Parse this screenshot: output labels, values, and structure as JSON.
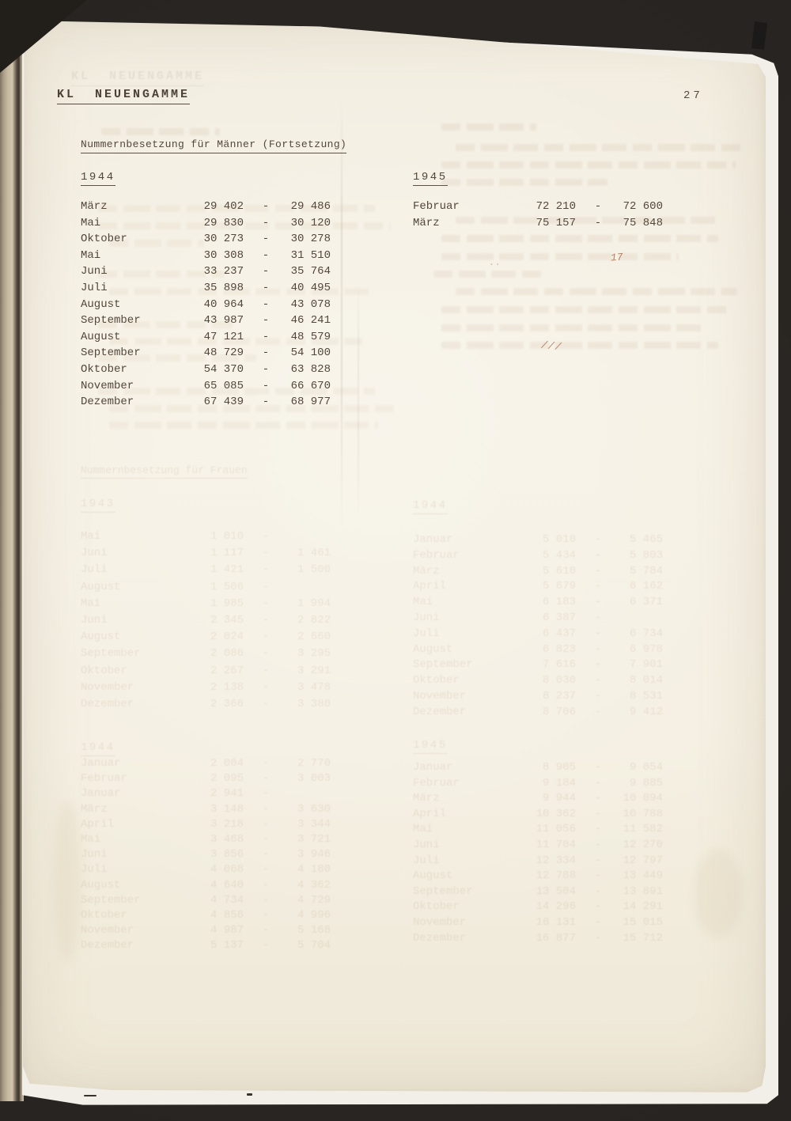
{
  "header": {
    "title": "KL  NEUENGAMME",
    "page_number": "27"
  },
  "section": {
    "title": "Nummernbesetzung für Männer (Fortsetzung)"
  },
  "tables": {
    "y1944": {
      "year_label": "1944",
      "rows": [
        {
          "m": "März",
          "a": "29 402",
          "d": "-",
          "b": "29 486"
        },
        {
          "m": "Mai",
          "a": "29 830",
          "d": "-",
          "b": "30 120"
        },
        {
          "m": "Oktober",
          "a": "30 273",
          "d": "-",
          "b": "30 278"
        },
        {
          "m": "Mai",
          "a": "30 308",
          "d": "-",
          "b": "31 510"
        },
        {
          "m": "Juni",
          "a": "33 237",
          "d": "-",
          "b": "35 764"
        },
        {
          "m": "Juli",
          "a": "35 898",
          "d": "-",
          "b": "40 495"
        },
        {
          "m": "August",
          "a": "40 964",
          "d": "-",
          "b": "43 078"
        },
        {
          "m": "September",
          "a": "43 987",
          "d": "-",
          "b": "46 241"
        },
        {
          "m": "August",
          "a": "47 121",
          "d": "-",
          "b": "48 579"
        },
        {
          "m": "September",
          "a": "48 729",
          "d": "-",
          "b": "54 100"
        },
        {
          "m": "Oktober",
          "a": "54 370",
          "d": "-",
          "b": "63 828"
        },
        {
          "m": "November",
          "a": "65 085",
          "d": "-",
          "b": "66 670"
        },
        {
          "m": "Dezember",
          "a": "67 439",
          "d": "-",
          "b": "68 977"
        }
      ]
    },
    "y1945": {
      "year_label": "1945",
      "rows": [
        {
          "m": "Februar",
          "a": "72 210",
          "d": "-",
          "b": "72 600"
        },
        {
          "m": "März",
          "a": "75 157",
          "d": "-",
          "b": "75 848"
        }
      ]
    }
  },
  "ghost_bleedthrough": {
    "note_title_illegible": "Nummernbesetzung für Frauen",
    "tableA": {
      "year_label": "1943",
      "rows": [
        {
          "m": "Mai",
          "a": "1 010",
          "d": "-",
          "b": ""
        },
        {
          "m": "Juni",
          "a": "1 117",
          "d": "-",
          "b": "1 461"
        },
        {
          "m": "Juli",
          "a": "1 421",
          "d": "-",
          "b": "1 500"
        },
        {
          "m": "August",
          "a": "1 506",
          "d": "-",
          "b": ""
        },
        {
          "m": "Mai",
          "a": "1 985",
          "d": "-",
          "b": "1 994"
        },
        {
          "m": "Juni",
          "a": "2 345",
          "d": "-",
          "b": "2 822"
        },
        {
          "m": "August",
          "a": "2 024",
          "d": "-",
          "b": "2 660"
        },
        {
          "m": "September",
          "a": "2 086",
          "d": "-",
          "b": "3 295"
        },
        {
          "m": "Oktober",
          "a": "2 267",
          "d": "-",
          "b": "3 291"
        },
        {
          "m": "November",
          "a": "2 138",
          "d": "-",
          "b": "3 478"
        },
        {
          "m": "Dezember",
          "a": "2 366",
          "d": "-",
          "b": "3 380"
        }
      ]
    },
    "tableB": {
      "year_label": "1944",
      "rows": [
        {
          "m": "Januar",
          "a": "5 010",
          "d": "-",
          "b": "5 465"
        },
        {
          "m": "Februar",
          "a": "5 434",
          "d": "-",
          "b": "5 803"
        },
        {
          "m": "März",
          "a": "5 610",
          "d": "-",
          "b": "5 784"
        },
        {
          "m": "April",
          "a": "5 679",
          "d": "-",
          "b": "6 162"
        },
        {
          "m": "Mai",
          "a": "6 183",
          "d": "-",
          "b": "6 371"
        },
        {
          "m": "Juni",
          "a": "6 387",
          "d": "-",
          "b": ""
        },
        {
          "m": "Juli",
          "a": "6 437",
          "d": "-",
          "b": "6 734"
        },
        {
          "m": "August",
          "a": "6 823",
          "d": "-",
          "b": "6 978"
        },
        {
          "m": "September",
          "a": "7 616",
          "d": "-",
          "b": "7 901"
        },
        {
          "m": "Oktober",
          "a": "8 030",
          "d": "-",
          "b": "8 014"
        },
        {
          "m": "November",
          "a": "8 237",
          "d": "-",
          "b": "8 531"
        },
        {
          "m": "Dezember",
          "a": "8 706",
          "d": "-",
          "b": "9 412"
        }
      ]
    },
    "tableC": {
      "year_label": "1944",
      "rows": [
        {
          "m": "Januar",
          "a": "2 004",
          "d": "-",
          "b": "2 770"
        },
        {
          "m": "Februar",
          "a": "2 095",
          "d": "-",
          "b": "3 003"
        },
        {
          "m": "Januar",
          "a": "2 941",
          "d": "-",
          "b": ""
        },
        {
          "m": "März",
          "a": "3 148",
          "d": "-",
          "b": "3 630"
        },
        {
          "m": "April",
          "a": "3 218",
          "d": "-",
          "b": "3 344"
        },
        {
          "m": "Mai",
          "a": "3 468",
          "d": "-",
          "b": "3 721"
        },
        {
          "m": "Juni",
          "a": "3 856",
          "d": "-",
          "b": "3 946"
        },
        {
          "m": "Juli",
          "a": "4 068",
          "d": "-",
          "b": "4 180"
        },
        {
          "m": "August",
          "a": "4 640",
          "d": "-",
          "b": "4 362"
        },
        {
          "m": "September",
          "a": "4 734",
          "d": "-",
          "b": "4 729"
        },
        {
          "m": "Oktober",
          "a": "4 856",
          "d": "-",
          "b": "4 996"
        },
        {
          "m": "November",
          "a": "4 987",
          "d": "-",
          "b": "5 168"
        },
        {
          "m": "Dezember",
          "a": "5 137",
          "d": "-",
          "b": "5 704"
        }
      ]
    },
    "tableD": {
      "year_label": "1945",
      "rows": [
        {
          "m": "Januar",
          "a": "8 905",
          "d": "-",
          "b": "9 054"
        },
        {
          "m": "Februar",
          "a": "9 184",
          "d": "-",
          "b": "9 885"
        },
        {
          "m": "März",
          "a": "9 944",
          "d": "-",
          "b": "10 094"
        },
        {
          "m": "April",
          "a": "10 362",
          "d": "-",
          "b": "10 788"
        },
        {
          "m": "Mai",
          "a": "11 056",
          "d": "-",
          "b": "11 582"
        },
        {
          "m": "Juni",
          "a": "11 704",
          "d": "-",
          "b": "12 270"
        },
        {
          "m": "Juli",
          "a": "12 334",
          "d": "-",
          "b": "12 797"
        },
        {
          "m": "August",
          "a": "12 788",
          "d": "-",
          "b": "13 449"
        },
        {
          "m": "September",
          "a": "13 504",
          "d": "-",
          "b": "13 891"
        },
        {
          "m": "Oktober",
          "a": "14 296",
          "d": "-",
          "b": "14 291"
        },
        {
          "m": "November",
          "a": "16 131",
          "d": "-",
          "b": "15 015"
        },
        {
          "m": "Dezember",
          "a": "16 877",
          "d": "-",
          "b": "15 712"
        }
      ]
    },
    "ink_marks": {
      "mark1": "17",
      "mark2": "///",
      "mark3": ".."
    }
  },
  "colors": {
    "paper": "#f4efe1",
    "backdrop": "#262320",
    "typewriter_text": "#53463a",
    "bleedthrough": "#a97e62",
    "ink_mark": "#a05a32"
  }
}
